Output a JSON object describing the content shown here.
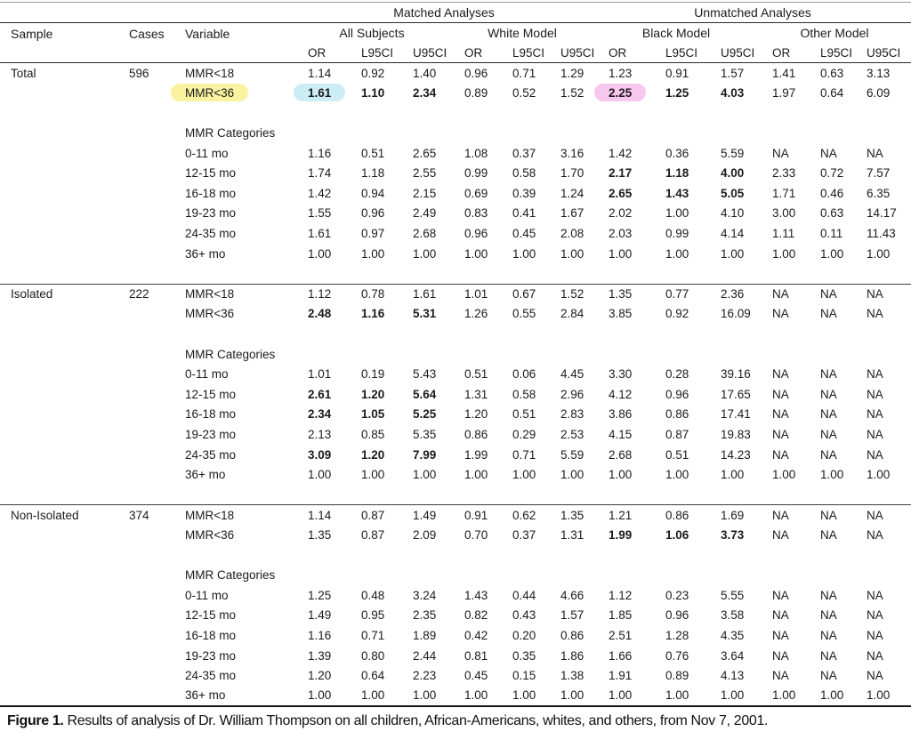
{
  "figure": {
    "caption_label": "Figure 1.",
    "caption_text": "Results of analysis of Dr. William Thompson on all children, African-Americans, whites, and others, from Nov 7, 2001."
  },
  "colors": {
    "highlight_yellow": "#f9f3a0",
    "highlight_cyan": "#cdedf6",
    "highlight_pink": "#f8c7ef",
    "rule_dark": "#2a2a2a",
    "rule_light": "#9a9a9a"
  },
  "table": {
    "group_headers": {
      "matched": "Matched Analyses",
      "unmatched": "Unmatched Analyses"
    },
    "column_headers": {
      "sample": "Sample",
      "cases": "Cases",
      "variable": "Variable",
      "models": [
        "All Subjects",
        "White Model",
        "Black Model",
        "Other Model"
      ]
    },
    "stat_headers": [
      "OR",
      "L95CI",
      "U95CI"
    ],
    "sections": [
      {
        "sample": "Total",
        "cases": "596",
        "rows": [
          {
            "variable": "MMR<18",
            "values": [
              "1.14",
              "0.92",
              "1.40",
              "0.96",
              "0.71",
              "1.29",
              "1.23",
              "0.91",
              "1.57",
              "1.41",
              "0.63",
              "3.13"
            ]
          },
          {
            "variable": "MMR<36",
            "variable_highlight": "yellow",
            "values": [
              "1.61",
              "1.10",
              "2.34",
              "0.89",
              "0.52",
              "1.52",
              "2.25",
              "1.25",
              "4.03",
              "1.97",
              "0.64",
              "6.09"
            ],
            "bold": [
              0,
              1,
              2,
              6,
              7,
              8
            ],
            "cell_highlights": {
              "0": "cyan",
              "6": "pink"
            }
          },
          {
            "spacer": true
          },
          {
            "variable": "MMR Categories",
            "values": []
          },
          {
            "variable": "0-11 mo",
            "values": [
              "1.16",
              "0.51",
              "2.65",
              "1.08",
              "0.37",
              "3.16",
              "1.42",
              "0.36",
              "5.59",
              "NA",
              "NA",
              "NA"
            ]
          },
          {
            "variable": "12-15 mo",
            "values": [
              "1.74",
              "1.18",
              "2.55",
              "0.99",
              "0.58",
              "1.70",
              "2.17",
              "1.18",
              "4.00",
              "2.33",
              "0.72",
              "7.57"
            ],
            "bold": [
              6,
              7,
              8
            ]
          },
          {
            "variable": "16-18 mo",
            "values": [
              "1.42",
              "0.94",
              "2.15",
              "0.69",
              "0.39",
              "1.24",
              "2.65",
              "1.43",
              "5.05",
              "1.71",
              "0.46",
              "6.35"
            ],
            "bold": [
              6,
              7,
              8
            ]
          },
          {
            "variable": "19-23 mo",
            "values": [
              "1.55",
              "0.96",
              "2.49",
              "0.83",
              "0.41",
              "1.67",
              "2.02",
              "1.00",
              "4.10",
              "3.00",
              "0.63",
              "14.17"
            ]
          },
          {
            "variable": "24-35 mo",
            "values": [
              "1.61",
              "0.97",
              "2.68",
              "0.96",
              "0.45",
              "2.08",
              "2.03",
              "0.99",
              "4.14",
              "1.11",
              "0.11",
              "11.43"
            ]
          },
          {
            "variable": "36+ mo",
            "values": [
              "1.00",
              "1.00",
              "1.00",
              "1.00",
              "1.00",
              "1.00",
              "1.00",
              "1.00",
              "1.00",
              "1.00",
              "1.00",
              "1.00"
            ]
          },
          {
            "spacer": true
          }
        ]
      },
      {
        "sample": "Isolated",
        "cases": "222",
        "rows": [
          {
            "variable": "MMR<18",
            "values": [
              "1.12",
              "0.78",
              "1.61",
              "1.01",
              "0.67",
              "1.52",
              "1.35",
              "0.77",
              "2.36",
              "NA",
              "NA",
              "NA"
            ]
          },
          {
            "variable": "MMR<36",
            "values": [
              "2.48",
              "1.16",
              "5.31",
              "1.26",
              "0.55",
              "2.84",
              "3.85",
              "0.92",
              "16.09",
              "NA",
              "NA",
              "NA"
            ],
            "bold": [
              0,
              1,
              2
            ]
          },
          {
            "spacer": true
          },
          {
            "variable": "MMR Categories",
            "values": []
          },
          {
            "variable": "0-11 mo",
            "values": [
              "1.01",
              "0.19",
              "5.43",
              "0.51",
              "0.06",
              "4.45",
              "3.30",
              "0.28",
              "39.16",
              "NA",
              "NA",
              "NA"
            ]
          },
          {
            "variable": "12-15 mo",
            "values": [
              "2.61",
              "1.20",
              "5.64",
              "1.31",
              "0.58",
              "2.96",
              "4.12",
              "0.96",
              "17.65",
              "NA",
              "NA",
              "NA"
            ],
            "bold": [
              0,
              1,
              2
            ]
          },
          {
            "variable": "16-18 mo",
            "values": [
              "2.34",
              "1.05",
              "5.25",
              "1.20",
              "0.51",
              "2.83",
              "3.86",
              "0.86",
              "17.41",
              "NA",
              "NA",
              "NA"
            ],
            "bold": [
              0,
              1,
              2
            ]
          },
          {
            "variable": "19-23 mo",
            "values": [
              "2.13",
              "0.85",
              "5.35",
              "0.86",
              "0.29",
              "2.53",
              "4.15",
              "0.87",
              "19.83",
              "NA",
              "NA",
              "NA"
            ]
          },
          {
            "variable": "24-35 mo",
            "values": [
              "3.09",
              "1.20",
              "7.99",
              "1.99",
              "0.71",
              "5.59",
              "2.68",
              "0.51",
              "14.23",
              "NA",
              "NA",
              "NA"
            ],
            "bold": [
              0,
              1,
              2
            ]
          },
          {
            "variable": "36+ mo",
            "values": [
              "1.00",
              "1.00",
              "1.00",
              "1.00",
              "1.00",
              "1.00",
              "1.00",
              "1.00",
              "1.00",
              "1.00",
              "1.00",
              "1.00"
            ]
          },
          {
            "spacer": true
          }
        ]
      },
      {
        "sample": "Non-Isolated",
        "cases": "374",
        "rows": [
          {
            "variable": "MMR<18",
            "values": [
              "1.14",
              "0.87",
              "1.49",
              "0.91",
              "0.62",
              "1.35",
              "1.21",
              "0.86",
              "1.69",
              "NA",
              "NA",
              "NA"
            ]
          },
          {
            "variable": "MMR<36",
            "values": [
              "1.35",
              "0.87",
              "2.09",
              "0.70",
              "0.37",
              "1.31",
              "1.99",
              "1.06",
              "3.73",
              "NA",
              "NA",
              "NA"
            ],
            "bold": [
              6,
              7,
              8
            ]
          },
          {
            "spacer": true
          },
          {
            "variable": "MMR Categories",
            "values": []
          },
          {
            "variable": "0-11 mo",
            "values": [
              "1.25",
              "0.48",
              "3.24",
              "1.43",
              "0.44",
              "4.66",
              "1.12",
              "0.23",
              "5.55",
              "NA",
              "NA",
              "NA"
            ]
          },
          {
            "variable": "12-15 mo",
            "values": [
              "1.49",
              "0.95",
              "2.35",
              "0.82",
              "0.43",
              "1.57",
              "1.85",
              "0.96",
              "3.58",
              "NA",
              "NA",
              "NA"
            ]
          },
          {
            "variable": "16-18 mo",
            "values": [
              "1.16",
              "0.71",
              "1.89",
              "0.42",
              "0.20",
              "0.86",
              "2.51",
              "1.28",
              "4.35",
              "NA",
              "NA",
              "NA"
            ]
          },
          {
            "variable": "19-23 mo",
            "values": [
              "1.39",
              "0.80",
              "2.44",
              "0.81",
              "0.35",
              "1.86",
              "1.66",
              "0.76",
              "3.64",
              "NA",
              "NA",
              "NA"
            ]
          },
          {
            "variable": "24-35 mo",
            "values": [
              "1.20",
              "0.64",
              "2.23",
              "0.45",
              "0.15",
              "1.38",
              "1.91",
              "0.89",
              "4.13",
              "NA",
              "NA",
              "NA"
            ]
          },
          {
            "variable": "36+ mo",
            "values": [
              "1.00",
              "1.00",
              "1.00",
              "1.00",
              "1.00",
              "1.00",
              "1.00",
              "1.00",
              "1.00",
              "1.00",
              "1.00",
              "1.00"
            ]
          }
        ]
      }
    ]
  }
}
